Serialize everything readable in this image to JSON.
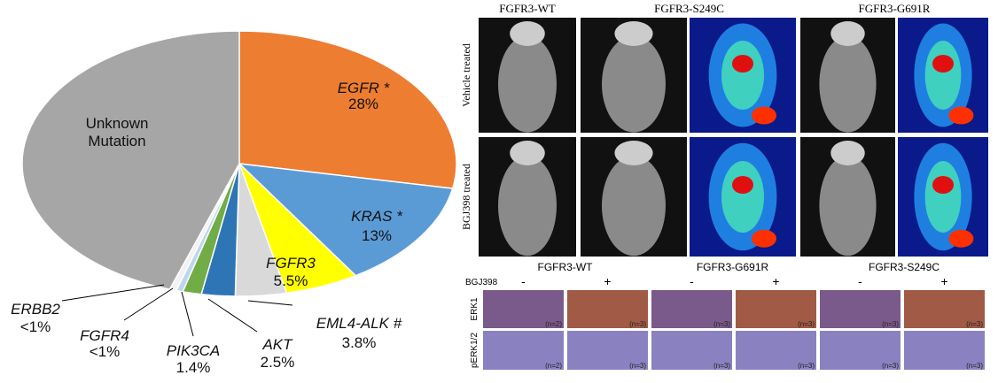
{
  "chart_data": {
    "type": "pie",
    "categories": [
      "EGFR *",
      "KRAS *",
      "FGFR3",
      "EML4-ALK #",
      "AKT",
      "PIK3CA",
      "FGFR4",
      "ERBB2",
      "Unknown Mutation"
    ],
    "values": [
      28,
      13,
      5.5,
      3.8,
      2.5,
      1.4,
      0.5,
      0.5,
      44.8
    ],
    "value_labels": [
      "28%",
      "13%",
      "5.5%",
      "3.8%",
      "2.5%",
      "1.4%",
      "<1%",
      "<1%",
      null
    ],
    "colors": [
      "#ed7d31",
      "#5b9bd5",
      "#ffff00",
      "#d9d9d9",
      "#2e75b6",
      "#70ad47",
      "#bdd7ee",
      "#f2f2f2",
      "#a6a6a6"
    ]
  },
  "panel": {
    "imaging_columns": [
      "FGFR3-WT",
      "FGFR3-S249C",
      "FGFR3-G691R"
    ],
    "imaging_rows": [
      "Vehicle treated",
      "BGJ398 treated"
    ],
    "ihc_columns": [
      "FGFR3-WT",
      "FGFR3-G691R",
      "FGFR3-S249C"
    ],
    "treatment": "BGJ398",
    "signs": [
      "-",
      "+",
      "-",
      "+",
      "-",
      "+"
    ],
    "ihc_rows": [
      "ERK1",
      "pERK1/2"
    ],
    "n_labels": [
      [
        "(n=2)",
        "(n=3)",
        "(n=3)",
        "(n=3)",
        "(n=3)",
        "(n=3)"
      ],
      [
        "(n=2)",
        "(n=3)",
        "(n=3)",
        "(n=3)",
        "(n=3)",
        "(n=3)"
      ]
    ]
  }
}
